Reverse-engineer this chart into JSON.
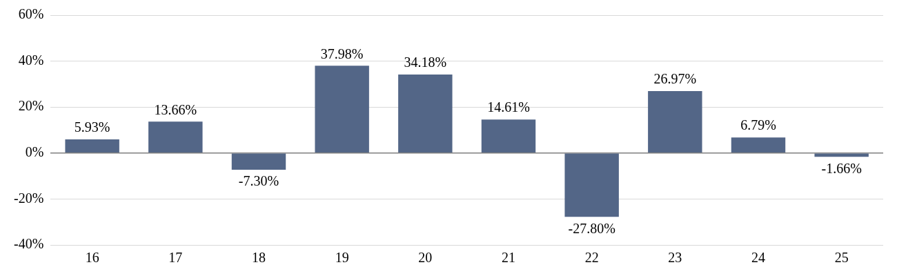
{
  "chart_data": {
    "type": "bar",
    "categories": [
      "16",
      "17",
      "18",
      "19",
      "20",
      "21",
      "22",
      "23",
      "24",
      "25"
    ],
    "values": [
      5.93,
      13.66,
      -7.3,
      37.98,
      34.18,
      14.61,
      -27.8,
      26.97,
      6.79,
      -1.66
    ],
    "value_labels": [
      "5.93%",
      "13.66%",
      "-7.30%",
      "37.98%",
      "34.18%",
      "14.61%",
      "-27.80%",
      "26.97%",
      "6.79%",
      "-1.66%"
    ],
    "color": "#536687",
    "ylim": [
      -40,
      60
    ],
    "yticks": [
      {
        "value": -40,
        "label": "-40%"
      },
      {
        "value": -20,
        "label": "-20%"
      },
      {
        "value": 0,
        "label": "0%"
      },
      {
        "value": 20,
        "label": "20%"
      },
      {
        "value": 40,
        "label": "40%"
      },
      {
        "value": 60,
        "label": "60%"
      }
    ],
    "grid": "y",
    "legend": false
  }
}
